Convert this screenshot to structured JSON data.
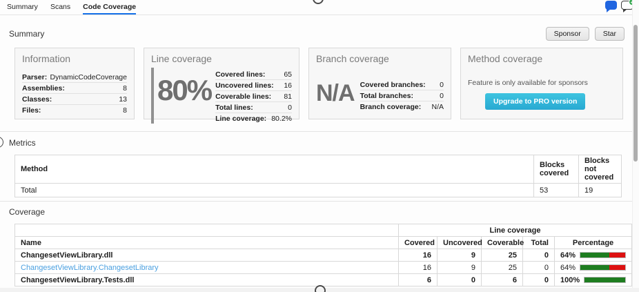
{
  "tabs": [
    {
      "label": "Summary",
      "active": false
    },
    {
      "label": "Scans",
      "active": false
    },
    {
      "label": "Code Coverage",
      "active": true
    }
  ],
  "top_icons": {
    "chat_filled": "filled-chat-bubble-icon",
    "chat_add": "chat-bubble-with-plus-icon"
  },
  "summary_section": {
    "title": "Summary",
    "sponsor_button": "Sponsor",
    "star_button": "Star",
    "cards": {
      "information": {
        "title": "Information",
        "rows": [
          [
            "Parser:",
            "DynamicCodeCoverage"
          ],
          [
            "Assemblies:",
            "8"
          ],
          [
            "Classes:",
            "13"
          ],
          [
            "Files:",
            "8"
          ]
        ]
      },
      "line_coverage": {
        "title": "Line coverage",
        "big_value": "80%",
        "rows": [
          [
            "Covered lines:",
            "65"
          ],
          [
            "Uncovered lines:",
            "16"
          ],
          [
            "Coverable lines:",
            "81"
          ],
          [
            "Total lines:",
            "0"
          ],
          [
            "Line coverage:",
            "80.2%"
          ]
        ]
      },
      "branch_coverage": {
        "title": "Branch coverage",
        "big_value": "N/A",
        "rows": [
          [
            "Covered branches:",
            "0"
          ],
          [
            "Total branches:",
            "0"
          ],
          [
            "Branch coverage:",
            "N/A"
          ]
        ]
      },
      "method_coverage": {
        "title": "Method coverage",
        "note": "Feature is only available for sponsors",
        "button": "Upgrade to PRO version"
      }
    }
  },
  "metrics_section": {
    "title": "Metrics",
    "table": {
      "headers": [
        "Method",
        "Blocks covered",
        "Blocks not covered"
      ],
      "rows": [
        {
          "method": "Total",
          "blocks_covered": "53",
          "blocks_not_covered": "19"
        }
      ]
    }
  },
  "coverage_section": {
    "title": "Coverage",
    "table": {
      "group_header": "Line coverage",
      "headers": [
        "Name",
        "Covered",
        "Uncovered",
        "Coverable",
        "Total",
        "Percentage"
      ],
      "rows": [
        {
          "name": "ChangesetViewLibrary.dll",
          "covered": "16",
          "uncovered": "9",
          "coverable": "25",
          "total": "0",
          "percentage": "64%",
          "pct": 64
        },
        {
          "name": "ChangesetViewLibrary.ChangesetLibrary",
          "covered": "16",
          "uncovered": "9",
          "coverable": "25",
          "total": "0",
          "percentage": "64%",
          "pct": 64
        },
        {
          "name": "ChangesetViewLibrary.Tests.dll",
          "covered": "6",
          "uncovered": "0",
          "coverable": "6",
          "total": "0",
          "percentage": "100%",
          "pct": 100
        }
      ]
    }
  },
  "colors": {
    "accent_blue": "#1570e8",
    "link_blue": "#4ba0e0",
    "bar_green": "#1e7d20",
    "bar_red": "#dd1111",
    "button_cyan": "#2fb8d9"
  }
}
